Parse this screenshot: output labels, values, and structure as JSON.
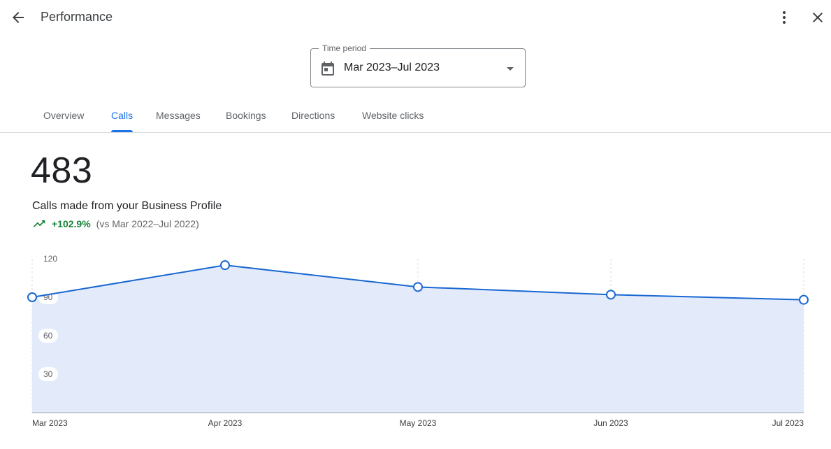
{
  "header": {
    "title": "Performance",
    "back_icon": "arrow-back-icon",
    "more_icon": "more-vert-icon",
    "close_icon": "close-icon"
  },
  "period": {
    "label": "Time period",
    "value": "Mar 2023–Jul 2023",
    "icon": "calendar-icon"
  },
  "tabs": [
    {
      "label": "Overview",
      "active": false
    },
    {
      "label": "Calls",
      "active": true
    },
    {
      "label": "Messages",
      "active": false
    },
    {
      "label": "Bookings",
      "active": false
    },
    {
      "label": "Directions",
      "active": false
    },
    {
      "label": "Website clicks",
      "active": false
    }
  ],
  "metric": {
    "value": "483",
    "description": "Calls made from your Business Profile",
    "trend": "+102.9%",
    "comparison": "(vs Mar 2022–Jul 2022)"
  },
  "colors": {
    "accent": "#1a73e8",
    "line": "#1967d2",
    "area": "#e3ebfb",
    "positive": "#188038"
  },
  "chart_data": {
    "type": "area",
    "categories": [
      "Mar 2023",
      "Apr 2023",
      "May 2023",
      "Jun 2023",
      "Jul 2023"
    ],
    "values": [
      90,
      115,
      98,
      92,
      88
    ],
    "yticks": [
      "30",
      "60",
      "90",
      "120"
    ],
    "ylim": [
      0,
      120
    ],
    "grid": "vertical dashed",
    "legend": "none"
  }
}
